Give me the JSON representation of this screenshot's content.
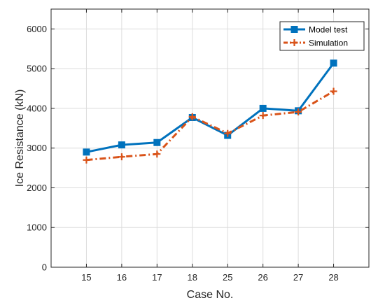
{
  "chart_data": {
    "type": "line",
    "title": "",
    "xlabel": "Case No.",
    "ylabel": "Ice Resistance (kN)",
    "categories": [
      "15",
      "16",
      "17",
      "18",
      "25",
      "26",
      "27",
      "28"
    ],
    "ylim": [
      0,
      6500
    ],
    "yticks": [
      0,
      1000,
      2000,
      3000,
      4000,
      5000,
      6000
    ],
    "grid": true,
    "legend_position": "top-right",
    "series": [
      {
        "name": "Model test",
        "values": [
          2900,
          3080,
          3140,
          3770,
          3320,
          4000,
          3940,
          5140
        ],
        "color": "#0072BD",
        "line_style": "solid",
        "marker": "square"
      },
      {
        "name": "Simulation",
        "values": [
          2700,
          2780,
          2850,
          3790,
          3370,
          3820,
          3910,
          4430
        ],
        "color": "#D95319",
        "line_style": "dash-dot",
        "marker": "plus"
      }
    ]
  }
}
